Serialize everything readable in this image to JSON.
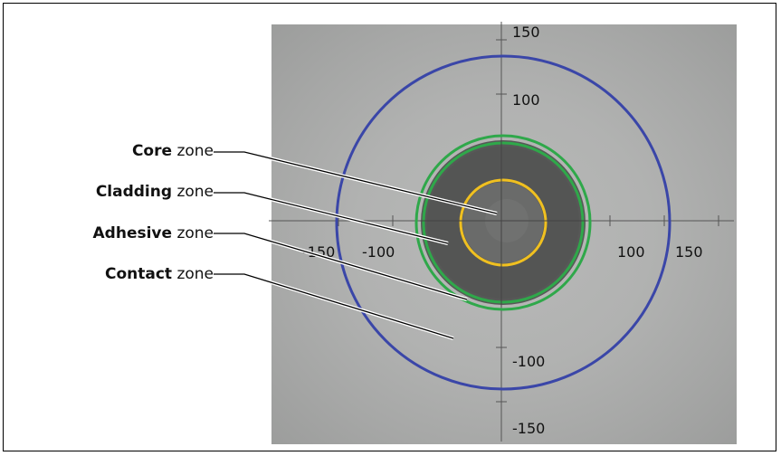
{
  "axis_ticks": {
    "x_negative": [
      "-150",
      "-100"
    ],
    "x_positive": [
      "100",
      "150"
    ],
    "y_positive": [
      "150",
      "100"
    ],
    "y_negative": [
      "-100",
      "-150"
    ]
  },
  "zones": [
    {
      "name": "Core",
      "suffix": "zone"
    },
    {
      "name": "Cladding",
      "suffix": "zone"
    },
    {
      "name": "Adhesive",
      "suffix": "zone"
    },
    {
      "name": "Contact",
      "suffix": "zone"
    }
  ],
  "colors": {
    "contact_circle": "#3a46a8",
    "adhesive_circle": "#2fa84a",
    "core_circle": "#f0c020",
    "cladding_fill": "#575857",
    "core_fill": "#6c6d6c"
  }
}
